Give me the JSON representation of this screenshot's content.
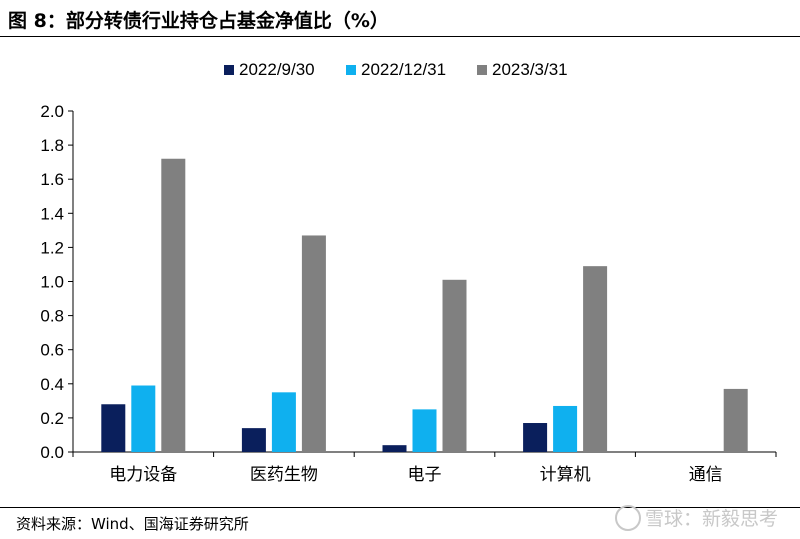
{
  "figure": {
    "title": "图 8：部分转债行业持仓占基金净值比（%）",
    "source": "资料来源：Wind、国海证券研究所",
    "watermark": "雪球：新毅思考"
  },
  "colors": {
    "series": [
      "#0a1f5c",
      "#0fb0ef",
      "#808080"
    ],
    "axis": "#000000",
    "rule": "#000000"
  },
  "chart_data": {
    "type": "bar",
    "title": "",
    "xlabel": "",
    "ylabel": "",
    "categories": [
      "电力设备",
      "医药生物",
      "电子",
      "计算机",
      "通信"
    ],
    "series": [
      {
        "name": "2022/9/30",
        "values": [
          0.28,
          0.14,
          0.04,
          0.17,
          0.0
        ]
      },
      {
        "name": "2022/12/31",
        "values": [
          0.39,
          0.35,
          0.25,
          0.27,
          0.0
        ]
      },
      {
        "name": "2023/3/31",
        "values": [
          1.72,
          1.27,
          1.01,
          1.09,
          0.37
        ]
      }
    ],
    "ylim": [
      0,
      2.0
    ],
    "yticks": [
      "0.0",
      "0.2",
      "0.4",
      "0.6",
      "0.8",
      "1.0",
      "1.2",
      "1.4",
      "1.6",
      "1.8",
      "2.0"
    ],
    "grid": false,
    "legend_position": "top-center"
  }
}
